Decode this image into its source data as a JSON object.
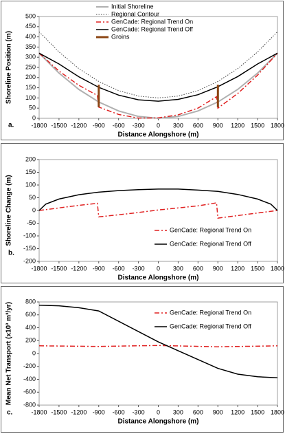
{
  "chart_data": [
    {
      "type": "line",
      "panel_label": "a.",
      "x_label": "Distance Alongshore (m)",
      "y_label": "Shoreline Position (m)",
      "xlim": [
        -1800,
        1800
      ],
      "xticks": [
        -1800,
        -1500,
        -1200,
        -900,
        -600,
        -300,
        0,
        300,
        600,
        900,
        1200,
        1500,
        1800
      ],
      "ylim": [
        0,
        500
      ],
      "yticks": [
        0,
        50,
        100,
        150,
        200,
        250,
        300,
        350,
        400,
        450,
        500
      ],
      "legend": "top",
      "series": [
        {
          "name": "Initial Shoreline",
          "color": "#b0b0b0",
          "line_style": "solid",
          "line_width": 2,
          "x": [
            -1800,
            -1500,
            -1200,
            -900,
            -600,
            -300,
            0,
            300,
            600,
            900,
            1200,
            1500,
            1800
          ],
          "values": [
            320,
            222,
            142,
            80,
            36,
            9,
            0,
            9,
            36,
            80,
            142,
            222,
            320
          ]
        },
        {
          "name": "Regional Contour",
          "color": "#444444",
          "line_style": "dotted",
          "line_width": 1,
          "x": [
            -1800,
            -1500,
            -1200,
            -900,
            -600,
            -300,
            0,
            300,
            600,
            900,
            1200,
            1500,
            1800
          ],
          "values": [
            425,
            326,
            244,
            181,
            136,
            109,
            100,
            109,
            136,
            181,
            244,
            326,
            425
          ]
        },
        {
          "name": "GenCade: Regional Trend On",
          "color": "#e02020",
          "line_style": "dashdot",
          "line_width": 1.5,
          "x": [
            -1800,
            -1500,
            -1200,
            -920,
            -900,
            -600,
            -300,
            0,
            300,
            600,
            880,
            900,
            1200,
            1500,
            1800
          ],
          "values": [
            320,
            232,
            162,
            112,
            55,
            19,
            1,
            2,
            17,
            50,
            106,
            50,
            122,
            212,
            320
          ]
        },
        {
          "name": "GenCade: Regional Trend Off",
          "color": "#000000",
          "line_style": "solid",
          "line_width": 1.5,
          "x": [
            -1800,
            -1500,
            -1200,
            -900,
            -600,
            -300,
            0,
            300,
            600,
            900,
            1200,
            1500,
            1800
          ],
          "values": [
            320,
            267,
            204,
            152,
            114,
            91,
            84,
            93,
            116,
            155,
            205,
            267,
            320
          ]
        },
        {
          "name": "Groins",
          "color": "#8b4513",
          "line_style": "solid",
          "line_width": 3,
          "x": [
            -900,
            -900,
            0,
            900,
            900
          ],
          "values": [
            55,
            165,
            null,
            55,
            165
          ]
        }
      ]
    },
    {
      "type": "line",
      "panel_label": "b.",
      "x_label": "Distance Alongshore (m)",
      "y_label": "Shoreline Change (m)",
      "xlim": [
        -1800,
        1800
      ],
      "xticks": [
        -1800,
        -1500,
        -1200,
        -900,
        -600,
        -300,
        0,
        300,
        600,
        900,
        1200,
        1500,
        1800
      ],
      "ylim": [
        -200,
        200
      ],
      "yticks": [
        -200,
        -150,
        -100,
        -50,
        0,
        50,
        100,
        150,
        200
      ],
      "legend": "lower right",
      "series": [
        {
          "name": "GenCade: Regional Trend On",
          "color": "#e02020",
          "line_style": "dashdot",
          "line_width": 1.5,
          "x": [
            -1800,
            -1500,
            -1200,
            -920,
            -900,
            -600,
            -300,
            0,
            300,
            600,
            880,
            900,
            1200,
            1500,
            1800
          ],
          "values": [
            0,
            10,
            20,
            28,
            -25,
            -17,
            -8,
            2,
            10,
            18,
            30,
            -30,
            -20,
            -10,
            0
          ]
        },
        {
          "name": "GenCade: Regional Trend Off",
          "color": "#000000",
          "line_style": "solid",
          "line_width": 1.5,
          "x": [
            -1800,
            -1700,
            -1500,
            -1200,
            -900,
            -600,
            -300,
            0,
            300,
            600,
            900,
            1200,
            1500,
            1700,
            1800
          ],
          "values": [
            0,
            25,
            45,
            62,
            72,
            78,
            82,
            84,
            84,
            80,
            75,
            63,
            45,
            25,
            0
          ]
        }
      ]
    },
    {
      "type": "line",
      "panel_label": "c.",
      "x_label": "Distance Alongshore (m)",
      "y_label": "Mean Net Transport (x10³ m³/yr)",
      "xlim": [
        -1800,
        1800
      ],
      "xticks": [
        -1800,
        -1500,
        -1200,
        -900,
        -600,
        -300,
        0,
        300,
        600,
        900,
        1200,
        1500,
        1800
      ],
      "ylim": [
        -800,
        800
      ],
      "yticks": [
        -800,
        -600,
        -400,
        -200,
        0,
        200,
        400,
        600,
        800
      ],
      "legend": "upper right",
      "series": [
        {
          "name": "GenCade: Regional Trend On",
          "color": "#e02020",
          "line_style": "dashdot",
          "line_width": 1.5,
          "x": [
            -1800,
            -900,
            0,
            900,
            1800
          ],
          "values": [
            120,
            110,
            125,
            105,
            120
          ]
        },
        {
          "name": "GenCade: Regional Trend Off",
          "color": "#000000",
          "line_style": "solid",
          "line_width": 1.5,
          "x": [
            -1800,
            -1500,
            -1200,
            -900,
            0,
            900,
            1200,
            1500,
            1800
          ],
          "values": [
            750,
            740,
            710,
            660,
            180,
            -230,
            -320,
            -360,
            -375
          ]
        }
      ]
    }
  ]
}
